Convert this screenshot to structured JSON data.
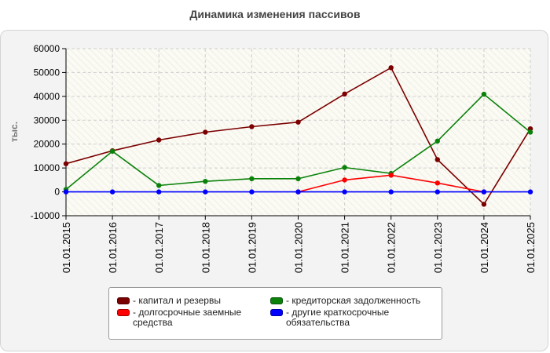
{
  "chart_data": {
    "type": "line",
    "title": "Динамика изменения пассивов",
    "ylabel": "тыс.",
    "xlabel": "",
    "ylim": [
      -10000,
      60000
    ],
    "yticks": [
      -10000,
      0,
      10000,
      20000,
      30000,
      40000,
      50000,
      60000
    ],
    "grid": true,
    "legend_position": "bottom",
    "categories": [
      "01.01.2015",
      "01.01.2016",
      "01.01.2017",
      "01.01.2018",
      "01.01.2019",
      "01.01.2020",
      "01.01.2021",
      "01.01.2022",
      "01.01.2023",
      "01.01.2024",
      "01.01.2025"
    ],
    "series": [
      {
        "name": "капитал и резервы",
        "color": "#7b0000",
        "values": [
          11800,
          17200,
          21700,
          25000,
          27300,
          29200,
          41000,
          52000,
          13500,
          -5200,
          26400
        ]
      },
      {
        "name": "кредиторская задолженность",
        "color": "#0a820a",
        "values": [
          1000,
          17000,
          2700,
          4400,
          5500,
          5500,
          10200,
          7700,
          21300,
          40900,
          25000
        ]
      },
      {
        "name": "долгосрочные заемные средства",
        "color": "#ff0000",
        "values": [
          null,
          null,
          null,
          null,
          null,
          0,
          5000,
          7000,
          3700,
          0,
          null
        ]
      },
      {
        "name": "другие краткосрочные обязательства",
        "color": "#0000ff",
        "values": [
          0,
          0,
          0,
          0,
          0,
          0,
          0,
          0,
          0,
          0,
          0
        ]
      }
    ]
  }
}
